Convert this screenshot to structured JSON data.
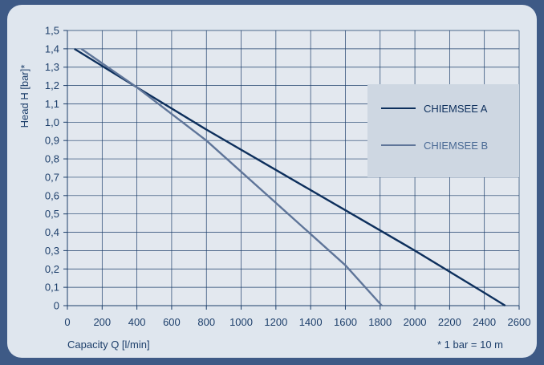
{
  "chart_data": {
    "type": "line",
    "xlabel": "Capacity Q [l/min]",
    "ylabel": "Head H [bar]*",
    "footnote": "* 1 bar = 10 m",
    "xlim": [
      0,
      2600
    ],
    "ylim": [
      0,
      1.5
    ],
    "x_ticks": [
      "0",
      "200",
      "400",
      "600",
      "800",
      "1000",
      "1200",
      "1400",
      "1600",
      "1800",
      "2000",
      "2200",
      "2400",
      "2600"
    ],
    "y_ticks": [
      "0",
      "0,1",
      "0,2",
      "0,3",
      "0,4",
      "0,5",
      "0,6",
      "0,7",
      "0,8",
      "0,9",
      "1,0",
      "1,1",
      "1,2",
      "1,3",
      "1,4",
      "1,5"
    ],
    "grid": true,
    "legend_position": "right",
    "series": [
      {
        "name": "CHIEMSEE A",
        "color": "#0d2f5c",
        "points": [
          [
            40,
            1.4
          ],
          [
            400,
            1.19
          ],
          [
            800,
            0.96
          ],
          [
            1200,
            0.74
          ],
          [
            1600,
            0.52
          ],
          [
            2000,
            0.3
          ],
          [
            2400,
            0.07
          ],
          [
            2520,
            0.0
          ]
        ]
      },
      {
        "name": "CHIEMSEE B",
        "color": "#5f7599",
        "points": [
          [
            80,
            1.4
          ],
          [
            400,
            1.19
          ],
          [
            800,
            0.9
          ],
          [
            1200,
            0.56
          ],
          [
            1600,
            0.22
          ],
          [
            1810,
            0.0
          ]
        ]
      }
    ]
  }
}
